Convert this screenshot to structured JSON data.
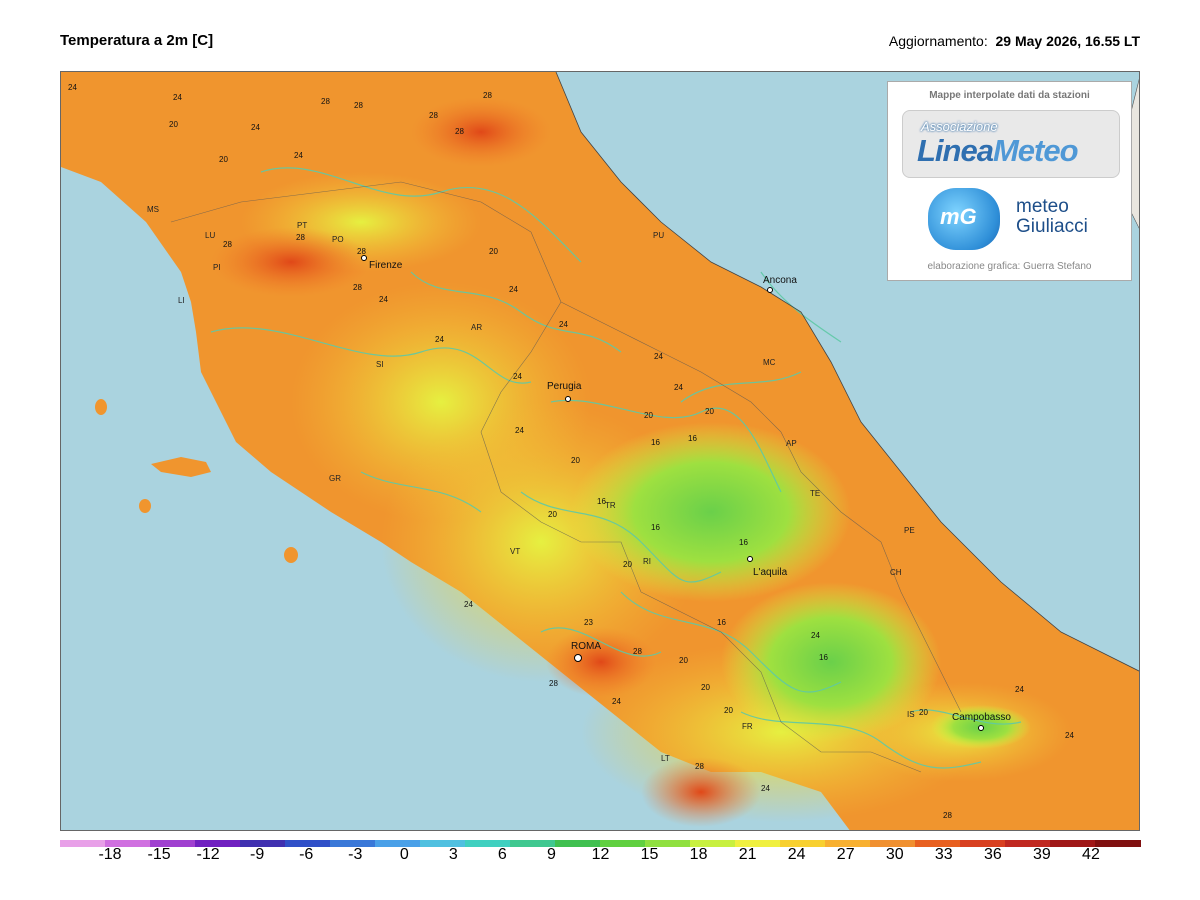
{
  "header": {
    "title": "Temperatura a 2m [C]",
    "updated_label": "Aggiornamento:",
    "updated_value": "29 May 2026, 16.55 LT"
  },
  "logo_box": {
    "caption": "Mappe interpolate dati da stazioni",
    "linea_top": "Associazione",
    "linea_main_a": "Linea",
    "linea_main_b": "Meteo",
    "mg_icon_text": "mG",
    "mg_line1": "meteo",
    "mg_line2": "Giuliacci",
    "credit": "elaborazione grafica: Guerra Stefano"
  },
  "cities": [
    {
      "name": "Firenze",
      "marker": true
    },
    {
      "name": "Ancona",
      "marker": true
    },
    {
      "name": "Perugia",
      "marker": true
    },
    {
      "name": "L'aquila",
      "marker": true
    },
    {
      "name": "ROMA",
      "marker": true
    },
    {
      "name": "Campobasso",
      "marker": true
    }
  ],
  "provinces": [
    "MS",
    "LU",
    "PT",
    "PO",
    "PI",
    "LI",
    "PU",
    "AR",
    "SI",
    "MC",
    "AP",
    "TE",
    "TR",
    "GR",
    "RI",
    "PE",
    "CH",
    "VT",
    "IS",
    "FR",
    "LT"
  ],
  "isotherm_labels": [
    "24",
    "24",
    "28",
    "28",
    "28",
    "28",
    "28",
    "20",
    "24",
    "20",
    "24",
    "28",
    "28",
    "28",
    "28",
    "24",
    "24",
    "20",
    "24",
    "24",
    "24",
    "24",
    "24",
    "20",
    "24",
    "16",
    "16",
    "20",
    "16",
    "16",
    "20",
    "20",
    "16",
    "20",
    "16",
    "16",
    "20",
    "23",
    "28",
    "20",
    "20",
    "24",
    "28",
    "24",
    "28",
    "24",
    "24",
    "24",
    "24",
    "20",
    "28"
  ],
  "colorbar": {
    "ticks": [
      "-18",
      "-15",
      "-12",
      "-9",
      "-6",
      "-3",
      "0",
      "3",
      "6",
      "9",
      "12",
      "15",
      "18",
      "21",
      "24",
      "27",
      "30",
      "33",
      "36",
      "39",
      "42"
    ],
    "colors": [
      "#e8a0e8",
      "#d070e0",
      "#a040d0",
      "#7020c0",
      "#4030b0",
      "#3050c8",
      "#3a78d8",
      "#4aa0e8",
      "#50c0e0",
      "#40d0c0",
      "#40c890",
      "#40c050",
      "#60d040",
      "#90e040",
      "#c8f040",
      "#f0f040",
      "#f8d030",
      "#f8b030",
      "#f09030",
      "#e86020",
      "#d84020",
      "#c02820",
      "#a01818",
      "#801010"
    ]
  }
}
